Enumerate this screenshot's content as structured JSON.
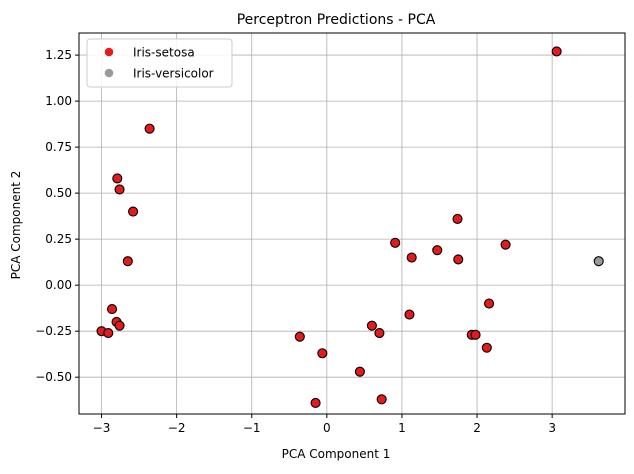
{
  "chart_data": {
    "type": "scatter",
    "title": "Perceptron Predictions - PCA",
    "xlabel": "PCA Component 1",
    "ylabel": "PCA Component 2",
    "xlim": [
      -3.3,
      3.97
    ],
    "ylim": [
      -0.7,
      1.37
    ],
    "xticks": [
      -3,
      -2,
      -1,
      0,
      1,
      2,
      3
    ],
    "yticks": [
      -0.5,
      -0.25,
      0.0,
      0.25,
      0.5,
      0.75,
      1.0,
      1.25
    ],
    "grid": true,
    "legend_position": "top-left",
    "series": [
      {
        "name": "Iris-setosa",
        "color": "#e41a1c",
        "points": [
          [
            3.06,
            1.27
          ],
          [
            -2.36,
            0.85
          ],
          [
            -2.79,
            0.58
          ],
          [
            -2.76,
            0.52
          ],
          [
            -2.58,
            0.4
          ],
          [
            -2.65,
            0.13
          ],
          [
            -2.86,
            -0.13
          ],
          [
            -3.0,
            -0.25
          ],
          [
            -2.91,
            -0.26
          ],
          [
            -2.8,
            -0.2
          ],
          [
            -2.76,
            -0.22
          ],
          [
            -0.36,
            -0.28
          ],
          [
            -0.06,
            -0.37
          ],
          [
            -0.15,
            -0.64
          ],
          [
            0.44,
            -0.47
          ],
          [
            0.73,
            -0.62
          ],
          [
            0.6,
            -0.22
          ],
          [
            0.7,
            -0.26
          ],
          [
            0.91,
            0.23
          ],
          [
            1.13,
            0.15
          ],
          [
            1.1,
            -0.16
          ],
          [
            1.47,
            0.19
          ],
          [
            1.74,
            0.36
          ],
          [
            1.75,
            0.14
          ],
          [
            2.38,
            0.22
          ],
          [
            2.16,
            -0.1
          ],
          [
            1.93,
            -0.27
          ],
          [
            1.98,
            -0.27
          ],
          [
            2.13,
            -0.34
          ]
        ]
      },
      {
        "name": "Iris-versicolor",
        "color": "#999999",
        "points": [
          [
            3.62,
            0.13
          ]
        ]
      }
    ]
  }
}
